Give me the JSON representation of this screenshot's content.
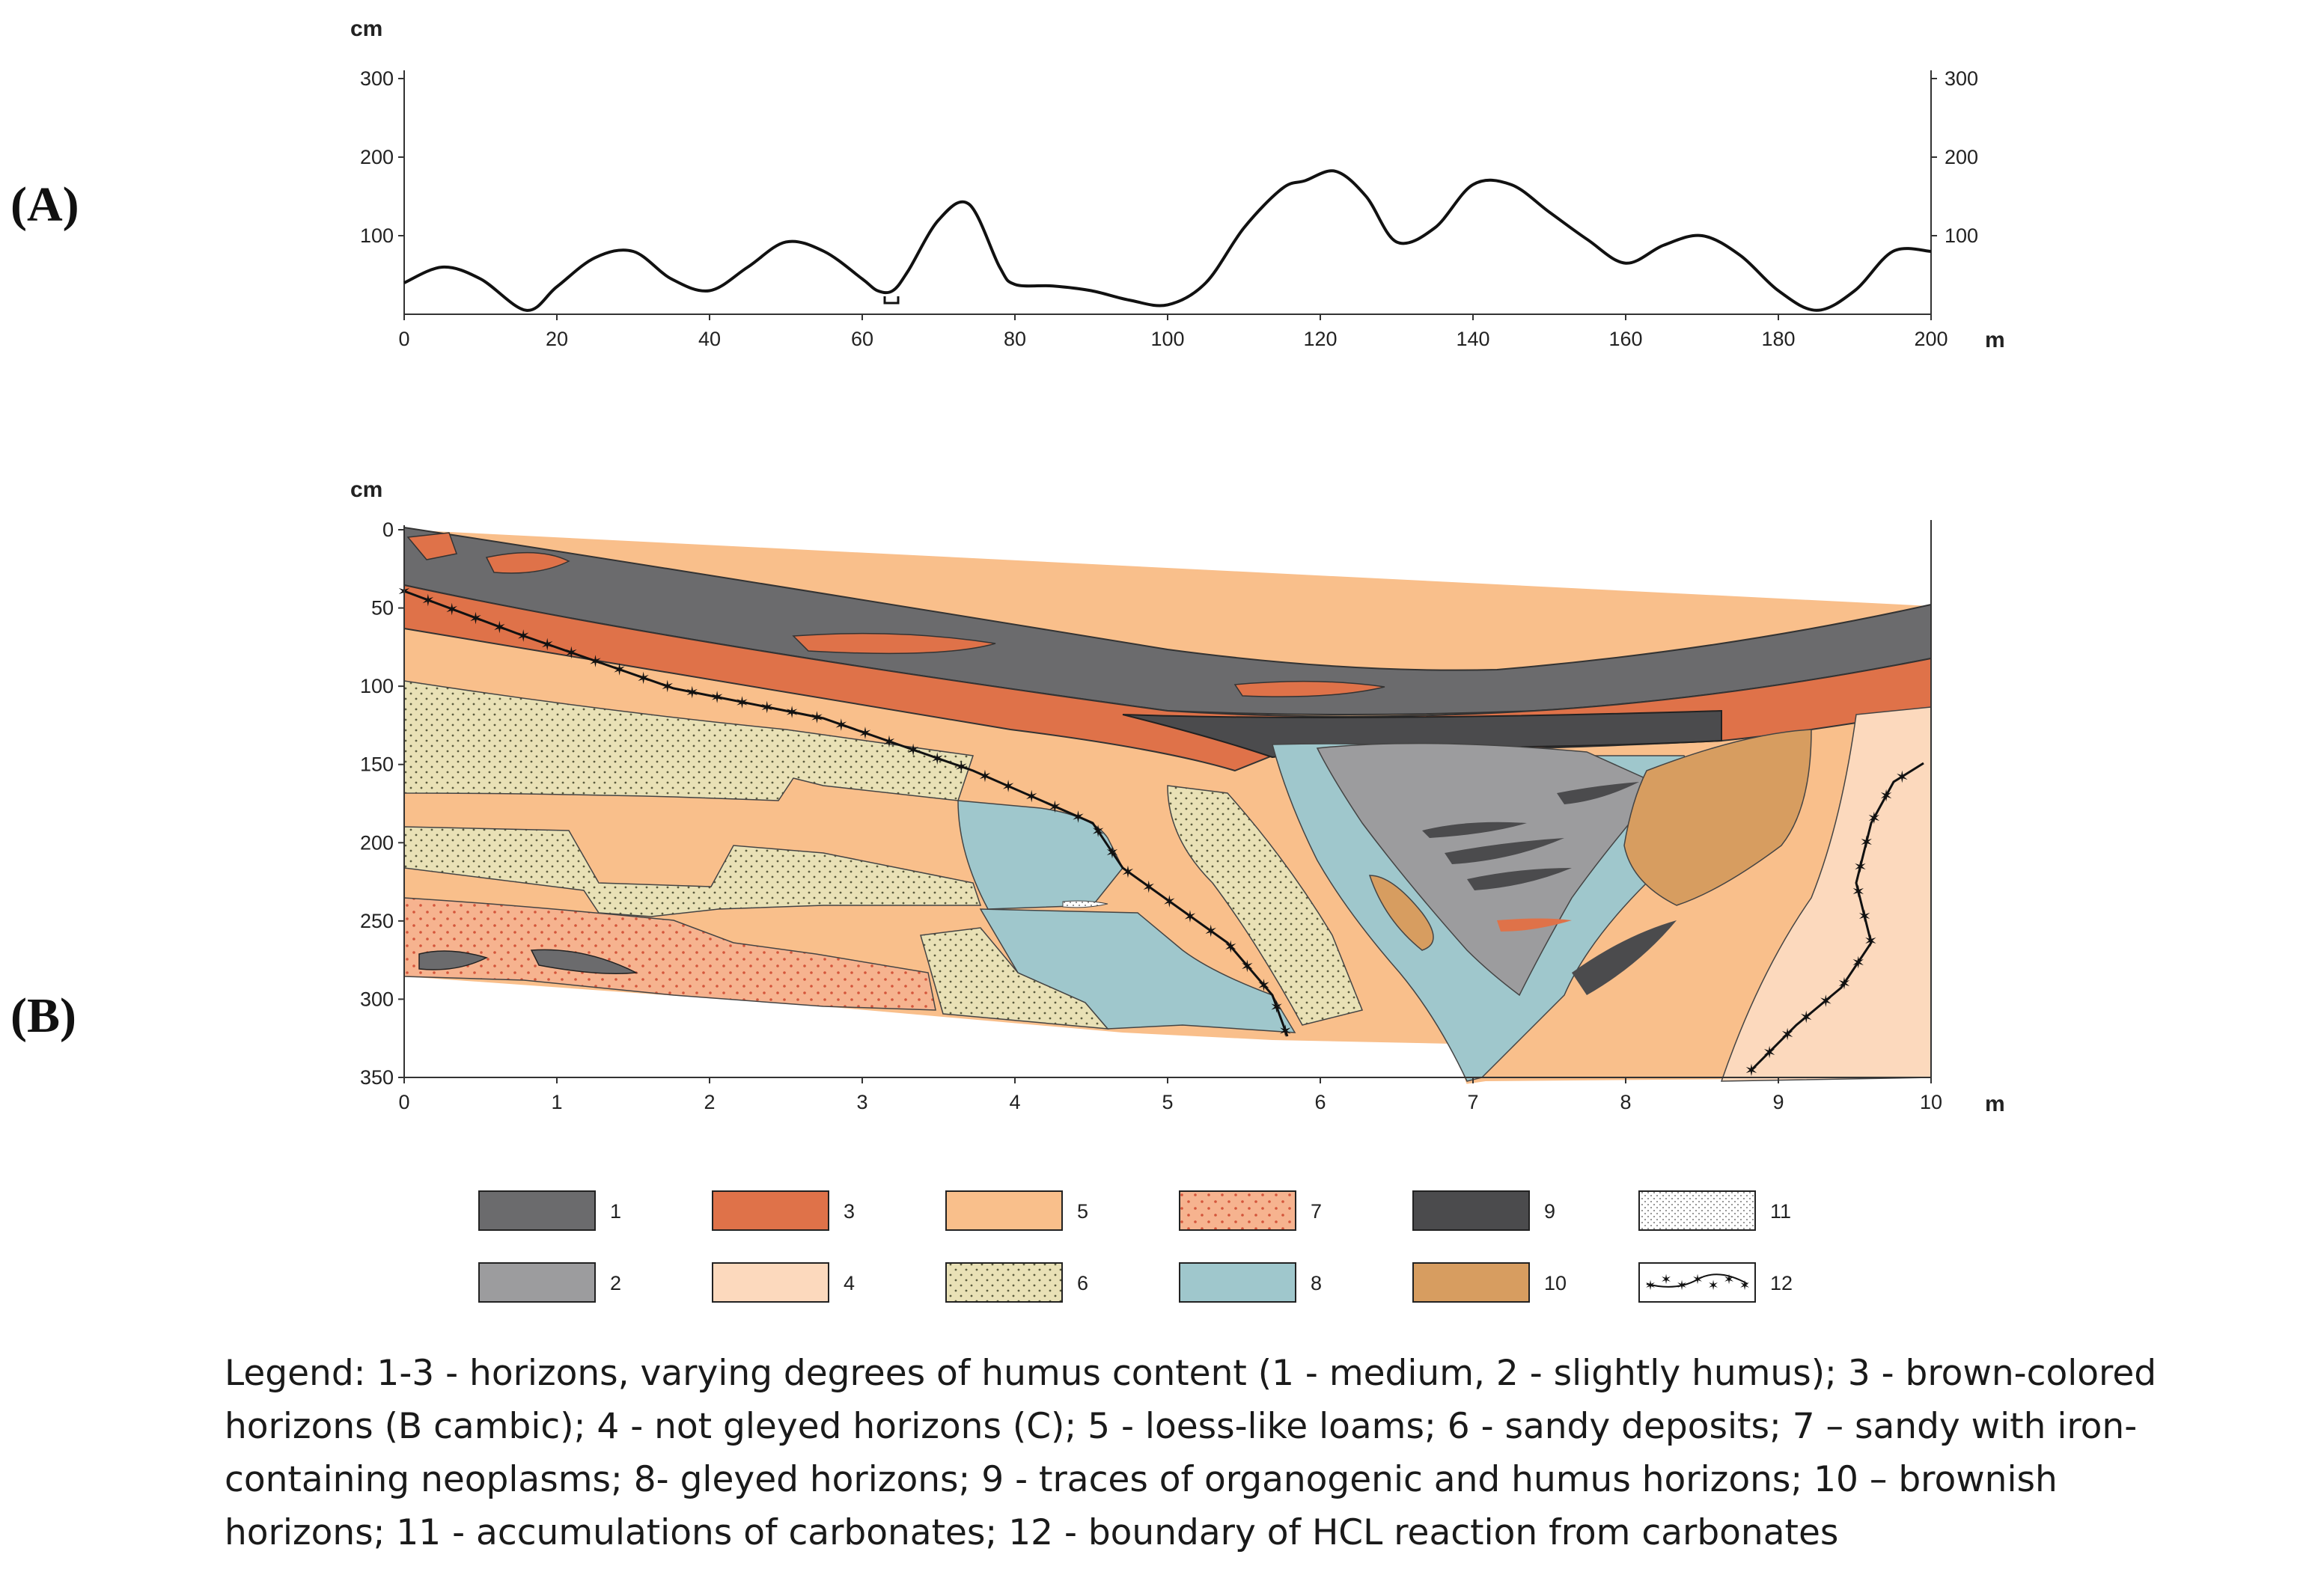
{
  "panels": {
    "a_label": "(A)",
    "b_label": "(B)"
  },
  "panel_a": {
    "y_unit": "cm",
    "x_unit": "m",
    "y_ticks": [
      "100",
      "200",
      "300"
    ],
    "x_ticks": [
      "0",
      "20",
      "40",
      "60",
      "80",
      "100",
      "120",
      "140",
      "160",
      "180",
      "200"
    ],
    "ylim": [
      0,
      300
    ],
    "xlim": [
      0,
      200
    ],
    "relief": {
      "x": [
        0,
        5,
        10,
        16,
        20,
        25,
        30,
        35,
        40,
        45,
        50,
        55,
        60,
        62,
        64,
        66,
        70,
        74,
        78,
        80,
        85,
        90,
        95,
        100,
        105,
        110,
        115,
        118,
        122,
        126,
        130,
        135,
        140,
        145,
        150,
        155,
        160,
        165,
        170,
        175,
        180,
        185,
        190,
        195,
        200
      ],
      "y": [
        40,
        60,
        45,
        5,
        35,
        72,
        80,
        45,
        30,
        60,
        92,
        80,
        45,
        30,
        30,
        55,
        120,
        140,
        60,
        38,
        36,
        30,
        18,
        12,
        40,
        110,
        160,
        170,
        182,
        150,
        92,
        110,
        165,
        165,
        130,
        95,
        65,
        88,
        100,
        75,
        30,
        5,
        30,
        80,
        80
      ]
    }
  },
  "panel_b": {
    "y_unit": "cm",
    "x_unit": "m",
    "y_ticks": [
      "0",
      "50",
      "100",
      "150",
      "200",
      "250",
      "300",
      "350"
    ],
    "x_ticks": [
      "0",
      "1",
      "2",
      "3",
      "4",
      "5",
      "6",
      "7",
      "8",
      "9",
      "10"
    ]
  },
  "legend": {
    "items": [
      {
        "num": "1",
        "color": "#6b6b6d",
        "pattern": "solid"
      },
      {
        "num": "2",
        "color": "#9c9c9e",
        "pattern": "solid"
      },
      {
        "num": "3",
        "color": "#df7249",
        "pattern": "solid"
      },
      {
        "num": "4",
        "color": "#fcd9bd",
        "pattern": "solid"
      },
      {
        "num": "5",
        "color": "#f9bf8b",
        "pattern": "solid"
      },
      {
        "num": "6",
        "color": "#e9e1b6",
        "pattern": "dots-dark"
      },
      {
        "num": "7",
        "color": "#f6b38f",
        "pattern": "dots-red"
      },
      {
        "num": "8",
        "color": "#9fc7cc",
        "pattern": "solid"
      },
      {
        "num": "9",
        "color": "#4b4b4d",
        "pattern": "solid"
      },
      {
        "num": "10",
        "color": "#d79d60",
        "pattern": "solid"
      },
      {
        "num": "11",
        "color": "#ffffff",
        "pattern": "hatch"
      },
      {
        "num": "12",
        "color": "#ffffff",
        "pattern": "star-line"
      }
    ],
    "caption_lines": [
      "Legend: 1-3 - horizons, varying degrees of humus content (1 - medium, 2 - slightly humus); 3 - brown-colored",
      "horizons (B cambic); 4 - not gleyed horizons (C); 5 - loess-like loams; 6 - sandy deposits; 7 – sandy with iron-",
      "containing neoplasms; 8- gleyed horizons; 9 - traces of organogenic and humus horizons; 10 – brownish",
      "horizons; 11 - accumulations of carbonates; 12 - boundary of HCL reaction from carbonates"
    ]
  },
  "colors": {
    "layer1": "#6b6b6d",
    "layer2": "#9c9c9e",
    "layer3": "#df7249",
    "layer4": "#fcd9bd",
    "layer5": "#f9bf8b",
    "layer6": "#e9e1b6",
    "layer7": "#f6b38f",
    "layer8": "#9fc7cc",
    "layer9": "#4b4b4d",
    "layer10": "#d79d60"
  }
}
